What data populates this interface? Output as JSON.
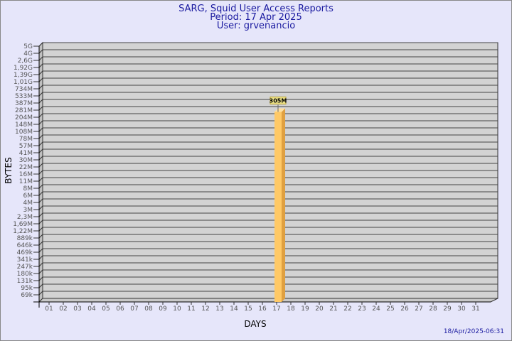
{
  "chart_data": {
    "type": "bar",
    "title": "SARG, Squid User Access Reports",
    "subtitle_period": "Period: 17 Apr 2025",
    "subtitle_user": "User: grvenancio",
    "xlabel": "DAYS",
    "ylabel": "BYTES",
    "y_scale": "log",
    "y_tick_labels": [
      "5G",
      "4G",
      "2,6G",
      "1,92G",
      "1,39G",
      "1,01G",
      "734M",
      "533M",
      "387M",
      "281M",
      "204M",
      "148M",
      "108M",
      "78M",
      "57M",
      "41M",
      "30M",
      "22M",
      "16M",
      "11M",
      "8M",
      "6M",
      "4M",
      "3M",
      "2,3M",
      "1,69M",
      "1,22M",
      "889k",
      "646k",
      "469k",
      "341k",
      "247k",
      "180k",
      "131k",
      "95k",
      "69k"
    ],
    "categories": [
      "01",
      "02",
      "03",
      "04",
      "05",
      "06",
      "07",
      "08",
      "09",
      "10",
      "11",
      "12",
      "13",
      "14",
      "15",
      "16",
      "17",
      "18",
      "19",
      "20",
      "21",
      "22",
      "23",
      "24",
      "25",
      "26",
      "27",
      "28",
      "29",
      "30",
      "31"
    ],
    "bars": [
      {
        "day": "17",
        "value": "305M",
        "label": "305M"
      }
    ],
    "grid": true,
    "colors": {
      "bar_front": "#ffc966",
      "bar_side": "#e0a040",
      "bar_top": "#ffe0a0",
      "wall": "#d3d3d3",
      "label_bg": "#f0e68c"
    },
    "timestamp": "18/Apr/2025-06:31"
  }
}
